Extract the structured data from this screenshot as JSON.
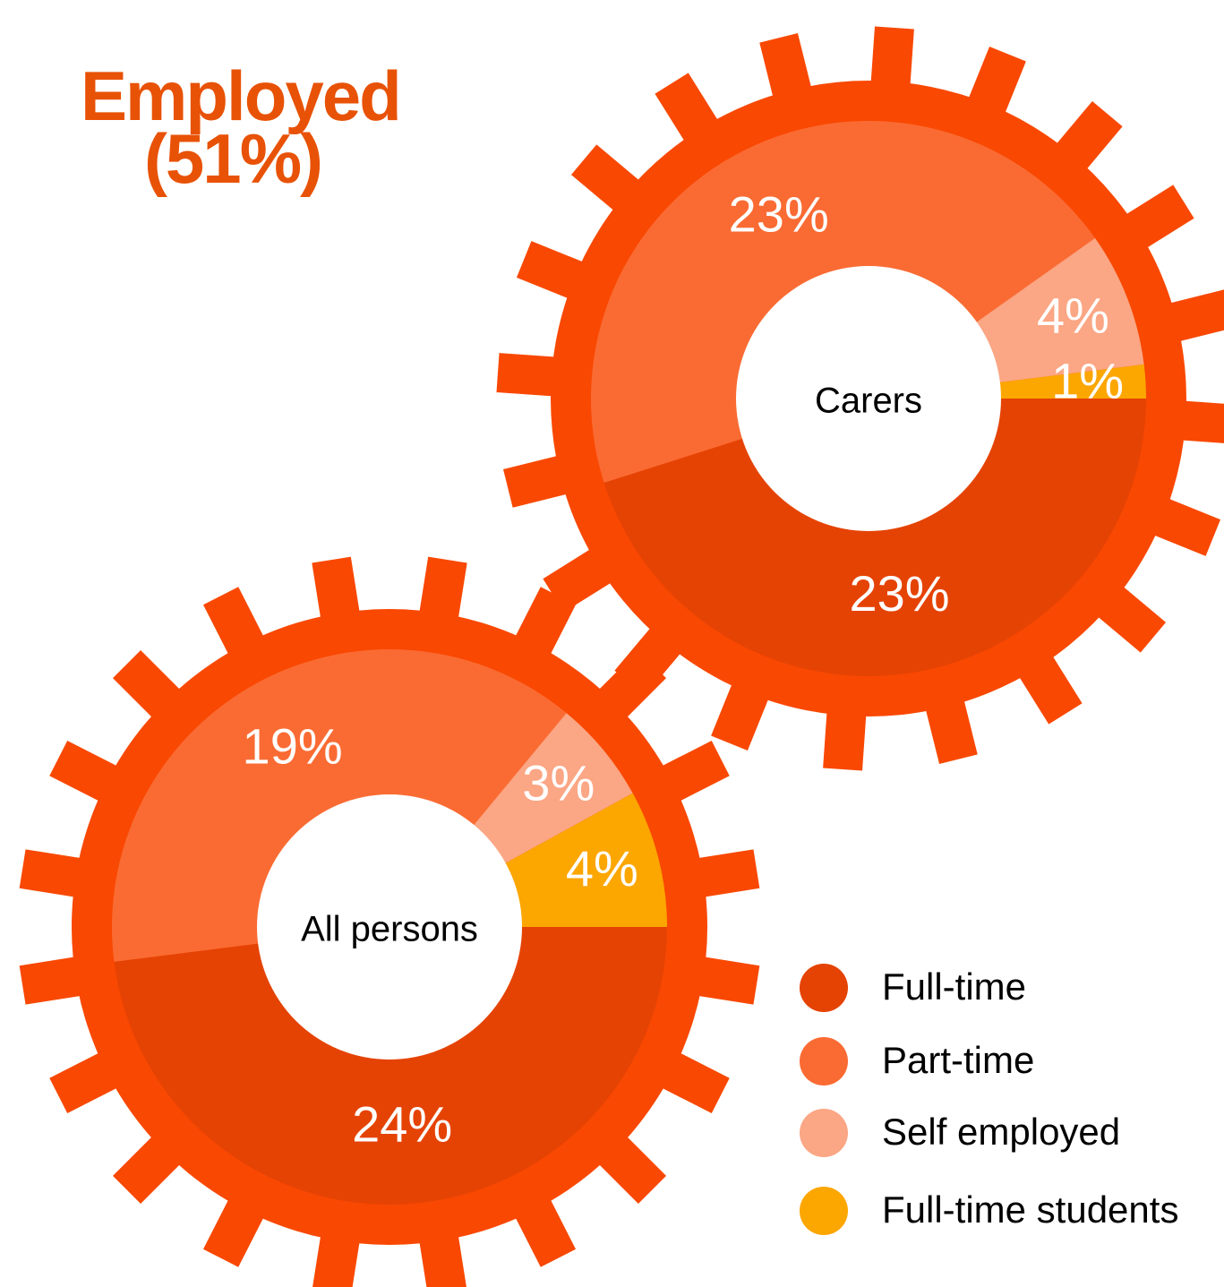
{
  "title": "Employed (51%)",
  "legend": {
    "categories": [
      "Full-time",
      "Part-time",
      "Self employed",
      "Full-time students"
    ],
    "colors": [
      "#e54304",
      "#fa6b33",
      "#fba684",
      "#fca600"
    ]
  },
  "chart_data": [
    {
      "type": "pie",
      "label": "Carers",
      "values": [
        23,
        23,
        4,
        1
      ],
      "value_labels": [
        "23%",
        "23%",
        "4%",
        "1%"
      ]
    },
    {
      "type": "pie",
      "label": "All persons",
      "values": [
        24,
        19,
        3,
        4
      ],
      "value_labels": [
        "24%",
        "19%",
        "3%",
        "4%"
      ]
    }
  ]
}
